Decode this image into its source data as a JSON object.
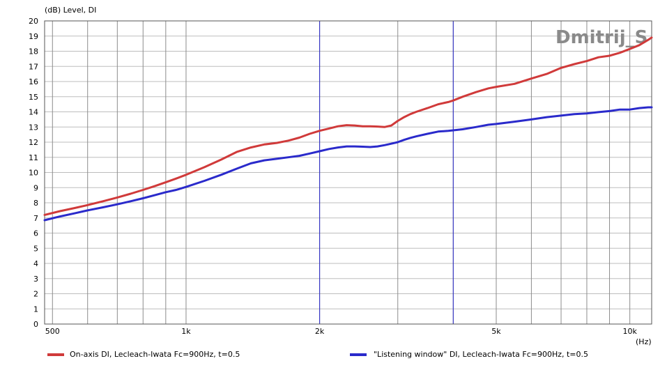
{
  "chart_data": {
    "type": "line",
    "ylabel": "(dB)  Level, DI",
    "xlabel": "(Hz)",
    "watermark": "Dmitrij_S",
    "xscale": "log",
    "xlim": [
      480,
      11200
    ],
    "ylim": [
      0,
      20
    ],
    "grid": true,
    "y_ticks": [
      "0",
      "1",
      "2",
      "3",
      "4",
      "5",
      "6",
      "7",
      "8",
      "9",
      "10",
      "11",
      "12",
      "13",
      "14",
      "15",
      "16",
      "17",
      "18",
      "19",
      "20"
    ],
    "x_tick_labels": [
      {
        "value": 500,
        "label": "500"
      },
      {
        "value": 1000,
        "label": "1k"
      },
      {
        "value": 2000,
        "label": "2k"
      },
      {
        "value": 5000,
        "label": "5k"
      },
      {
        "value": 10000,
        "label": "10k"
      }
    ],
    "x_minor_grid": [
      600,
      700,
      800,
      900,
      3000,
      4000,
      6000,
      7000,
      8000,
      9000
    ],
    "x_highlight_lines": [
      2000,
      4000
    ],
    "legend_placement": "bottom",
    "series": [
      {
        "name": "On-axis DI, Lecleach-Iwata Fc=900Hz, t=0.5",
        "color": "#d03a3a",
        "x": [
          480,
          520,
          560,
          600,
          650,
          700,
          750,
          800,
          850,
          900,
          950,
          1000,
          1100,
          1200,
          1300,
          1400,
          1500,
          1600,
          1700,
          1800,
          1900,
          2000,
          2100,
          2200,
          2300,
          2400,
          2500,
          2600,
          2700,
          2800,
          2900,
          3000,
          3100,
          3200,
          3300,
          3500,
          3700,
          3900,
          4000,
          4200,
          4500,
          4800,
          5000,
          5500,
          6000,
          6500,
          7000,
          7500,
          8000,
          8500,
          9000,
          9500,
          10000,
          10500,
          11000,
          11200
        ],
        "values": [
          7.2,
          7.45,
          7.65,
          7.85,
          8.1,
          8.35,
          8.6,
          8.85,
          9.1,
          9.35,
          9.6,
          9.85,
          10.35,
          10.85,
          11.35,
          11.65,
          11.85,
          11.95,
          12.1,
          12.3,
          12.55,
          12.75,
          12.9,
          13.05,
          13.12,
          13.1,
          13.05,
          13.05,
          13.03,
          13.0,
          13.1,
          13.4,
          13.65,
          13.85,
          14.0,
          14.25,
          14.5,
          14.65,
          14.75,
          15.0,
          15.3,
          15.55,
          15.65,
          15.85,
          16.2,
          16.5,
          16.9,
          17.15,
          17.35,
          17.6,
          17.7,
          17.9,
          18.15,
          18.4,
          18.75,
          18.9
        ]
      },
      {
        "name": "\"Listening window\" DI, Lecleach-Iwata Fc=900Hz, t=0.5",
        "color": "#2a2acb",
        "x": [
          480,
          520,
          560,
          600,
          650,
          700,
          750,
          800,
          850,
          900,
          950,
          1000,
          1100,
          1200,
          1300,
          1400,
          1500,
          1600,
          1700,
          1800,
          1900,
          2000,
          2100,
          2200,
          2300,
          2400,
          2500,
          2600,
          2700,
          2800,
          2900,
          3000,
          3100,
          3200,
          3300,
          3500,
          3700,
          3900,
          4000,
          4200,
          4500,
          4800,
          5000,
          5500,
          6000,
          6500,
          7000,
          7500,
          8000,
          8500,
          9000,
          9500,
          10000,
          10500,
          11000,
          11200
        ],
        "values": [
          6.85,
          7.1,
          7.3,
          7.5,
          7.7,
          7.9,
          8.1,
          8.3,
          8.5,
          8.7,
          8.85,
          9.05,
          9.45,
          9.85,
          10.25,
          10.6,
          10.8,
          10.9,
          11.0,
          11.1,
          11.25,
          11.4,
          11.55,
          11.65,
          11.72,
          11.72,
          11.7,
          11.68,
          11.72,
          11.8,
          11.9,
          12.0,
          12.15,
          12.28,
          12.38,
          12.55,
          12.7,
          12.75,
          12.78,
          12.85,
          13.0,
          13.15,
          13.2,
          13.35,
          13.5,
          13.65,
          13.75,
          13.85,
          13.9,
          13.98,
          14.05,
          14.15,
          14.15,
          14.25,
          14.3,
          14.3
        ]
      }
    ]
  }
}
